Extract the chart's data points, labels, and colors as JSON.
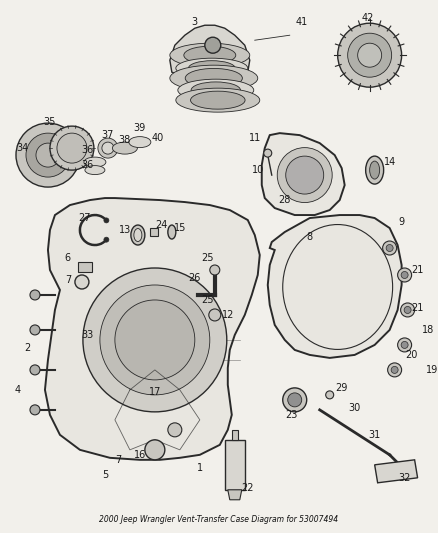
{
  "title": "2000 Jeep Wrangler Vent-Transfer Case Diagram for 53007494",
  "bg_color": "#f2f0eb",
  "line_color": "#2a2a2a",
  "label_color": "#1a1a1a",
  "fig_width": 4.38,
  "fig_height": 5.33,
  "dpi": 100,
  "label_fontsize": 7.0
}
